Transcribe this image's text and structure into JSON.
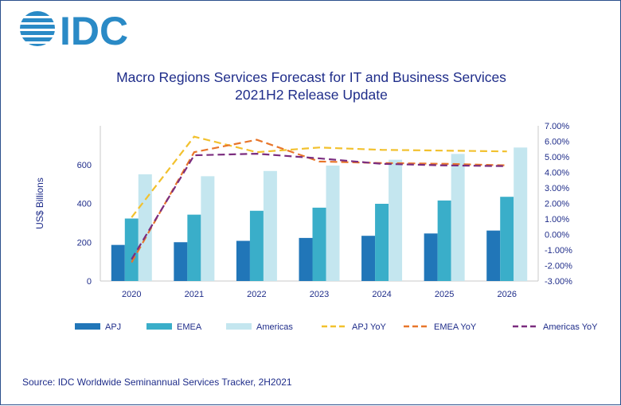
{
  "brand": {
    "logo_text": "IDC",
    "color": "#2a8ac6"
  },
  "chart_data": {
    "type": "bar",
    "title": "Macro Regions Services Forecast for IT and Business Services",
    "subtitle": "2021H2 Release Update",
    "categories": [
      "2020",
      "2021",
      "2022",
      "2023",
      "2024",
      "2025",
      "2026"
    ],
    "ylabel": "US$ Billions",
    "ylim": [
      0,
      800
    ],
    "yticks": [
      "0",
      "200",
      "400",
      "600"
    ],
    "y2lim": [
      -3.0,
      7.0
    ],
    "y2ticks": [
      "-3.00%",
      "-2.00%",
      "-1.00%",
      "0.00%",
      "1.00%",
      "2.00%",
      "3.00%",
      "4.00%",
      "5.00%",
      "6.00%",
      "7.00%"
    ],
    "series": [
      {
        "name": "APJ",
        "values": [
          186,
          200,
          207,
          222,
          233,
          245,
          260
        ],
        "color": "#2176b8"
      },
      {
        "name": "EMEA",
        "values": [
          322,
          342,
          362,
          378,
          398,
          415,
          434
        ],
        "color": "#3aaec9"
      },
      {
        "name": "Americas",
        "values": [
          550,
          540,
          567,
          595,
          625,
          655,
          688
        ],
        "color": "#c4e6ef"
      }
    ],
    "line_series": [
      {
        "name": "APJ YoY",
        "values": [
          1.1,
          6.3,
          5.3,
          5.6,
          5.45,
          5.4,
          5.35
        ],
        "color": "#f2c12e"
      },
      {
        "name": "EMEA YoY",
        "values": [
          -1.8,
          5.3,
          6.1,
          4.7,
          4.6,
          4.55,
          4.45
        ],
        "color": "#e8762b"
      },
      {
        "name": "Americas YoY",
        "values": [
          -1.6,
          5.1,
          5.2,
          4.9,
          4.55,
          4.45,
          4.4
        ],
        "color": "#7b2d7f"
      }
    ],
    "legend_position": "bottom",
    "grid": false
  },
  "source": "Source:  IDC Worldwide Seminannual Services Tracker, 2H2021"
}
